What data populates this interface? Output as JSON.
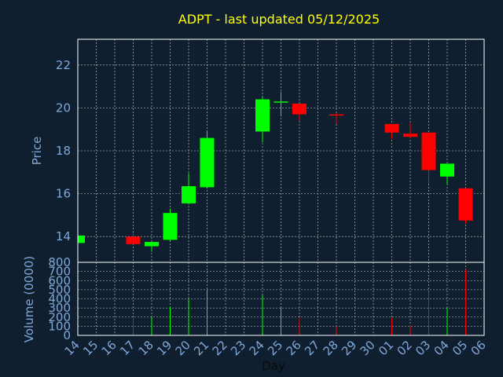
{
  "chart_data": {
    "type": "candlestick",
    "title": "ADPT - last updated 05/12/2025",
    "xlabel": "Day",
    "price_panel": {
      "ylabel": "Price",
      "yticks": [
        "14",
        "16",
        "18",
        "20",
        "22"
      ],
      "ylim": [
        12.8,
        23.2
      ],
      "grid": true
    },
    "volume_panel": {
      "ylabel": "Volume (0000)",
      "yticks": [
        "0",
        "100",
        "200",
        "300",
        "400",
        "500",
        "600",
        "700",
        "800"
      ],
      "ylim": [
        0,
        800
      ],
      "grid": true
    },
    "x_tick_labels": [
      "14",
      "15",
      "16",
      "17",
      "18",
      "19",
      "20",
      "21",
      "22",
      "23",
      "24",
      "25",
      "26",
      "27",
      "28",
      "29",
      "30",
      "01",
      "02",
      "03",
      "04",
      "05",
      "06"
    ],
    "candles": [
      {
        "day": "14",
        "open": 13.7,
        "high": 14.05,
        "low": 13.7,
        "close": 14.05,
        "volume": 0
      },
      {
        "day": "17",
        "open": 14.0,
        "high": 14.2,
        "low": 13.65,
        "close": 13.65,
        "volume": 190
      },
      {
        "day": "18",
        "open": 13.55,
        "high": 13.75,
        "low": 13.3,
        "close": 13.75,
        "volume": 200
      },
      {
        "day": "19",
        "open": 13.85,
        "high": 15.3,
        "low": 13.8,
        "close": 15.1,
        "volume": 310
      },
      {
        "day": "20",
        "open": 15.55,
        "high": 16.95,
        "low": 15.5,
        "close": 16.35,
        "volume": 400
      },
      {
        "day": "21",
        "open": 16.3,
        "high": 18.9,
        "low": 16.25,
        "close": 18.6,
        "volume": 500
      },
      {
        "day": "24",
        "open": 18.9,
        "high": 20.5,
        "low": 18.4,
        "close": 20.4,
        "volume": 440
      },
      {
        "day": "25",
        "open": 20.3,
        "high": 20.75,
        "low": 19.6,
        "close": 20.3,
        "volume": 300
      },
      {
        "day": "26",
        "open": 20.2,
        "high": 20.2,
        "low": 19.4,
        "close": 19.7,
        "volume": 190
      },
      {
        "day": "28",
        "open": 19.7,
        "high": 19.75,
        "low": 19.25,
        "close": 19.65,
        "volume": 100
      },
      {
        "day": "01",
        "open": 19.25,
        "high": 19.25,
        "low": 18.55,
        "close": 18.85,
        "volume": 190
      },
      {
        "day": "02",
        "open": 18.8,
        "high": 19.3,
        "low": 18.6,
        "close": 18.65,
        "volume": 110
      },
      {
        "day": "03",
        "open": 18.85,
        "high": 18.85,
        "low": 16.45,
        "close": 17.1,
        "volume": 480
      },
      {
        "day": "04",
        "open": 16.8,
        "high": 17.4,
        "low": 16.45,
        "close": 17.4,
        "volume": 300
      },
      {
        "day": "05",
        "open": 16.25,
        "high": 16.25,
        "low": 14.6,
        "close": 14.75,
        "volume": 720
      }
    ],
    "colors": {
      "background": "#0f1f2f",
      "up": "#00ff00",
      "down": "#ff0000",
      "title": "#ffff00",
      "labels": "#7fa8d8",
      "frame": "#ffffff"
    }
  }
}
